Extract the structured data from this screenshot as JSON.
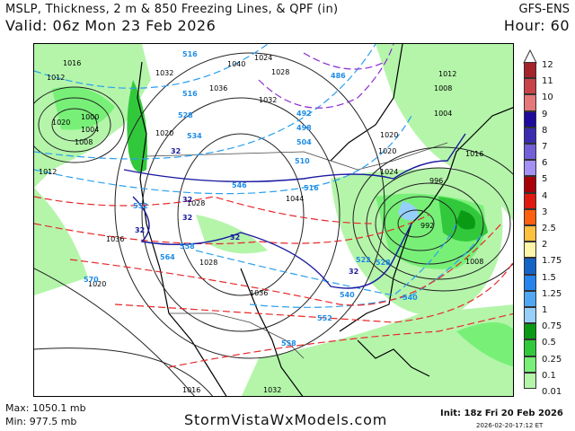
{
  "header": {
    "title": "MSLP, Thickness, 2 m & 850 Freezing Lines, & QPF (in)",
    "model": "GFS-ENS",
    "valid": "Valid: 06z Mon 23 Feb 2026",
    "hour": "Hour: 60"
  },
  "footer": {
    "max": "Max: 1050.1 mb",
    "min": "Min: 977.5 mb",
    "site": "StormVistaWxModels.com",
    "init": "Init: 18z Fri 20 Feb 2026",
    "generated": "2026-02-20-17:12 ET"
  },
  "colorbar": {
    "labels": [
      "12",
      "11",
      "10",
      "9",
      "8",
      "7",
      "6",
      "5",
      "4",
      "3",
      "2.5",
      "2",
      "1.75",
      "1.5",
      "1.25",
      "1",
      "0.75",
      "0.5",
      "0.25",
      "0.1",
      "0.01"
    ],
    "colors": [
      "#a5232b",
      "#c84448",
      "#e4787a",
      "#1e0a9c",
      "#3a2cb0",
      "#7260d8",
      "#a491f5",
      "#a80008",
      "#e01a10",
      "#ff6010",
      "#ffc040",
      "#fff5a8",
      "#1464c8",
      "#2684ee",
      "#50a8f5",
      "#96d0fa",
      "#0a9a14",
      "#32c83c",
      "#78f078",
      "#b4f5aa"
    ]
  },
  "map": {
    "isobar_labels": [
      "1016",
      "1012",
      "1000",
      "1004",
      "1008",
      "1020",
      "1024",
      "1028",
      "1032",
      "1036",
      "1040",
      "1044",
      "1036",
      "1032",
      "1028",
      "1020",
      "1024",
      "1020",
      "1012",
      "1008",
      "1004",
      "996",
      "992",
      "1008",
      "1016",
      "1020",
      "1016",
      "1032",
      "1036",
      "1028",
      "1020",
      "1012"
    ],
    "thickness_labels": [
      "516",
      "516",
      "528",
      "534",
      "510",
      "516",
      "522",
      "528",
      "540",
      "546",
      "552",
      "558",
      "564",
      "570",
      "552",
      "558",
      "492",
      "498",
      "504",
      "486",
      "540"
    ],
    "freezing_labels": [
      "32",
      "32",
      "32",
      "32",
      "32",
      "32"
    ]
  }
}
